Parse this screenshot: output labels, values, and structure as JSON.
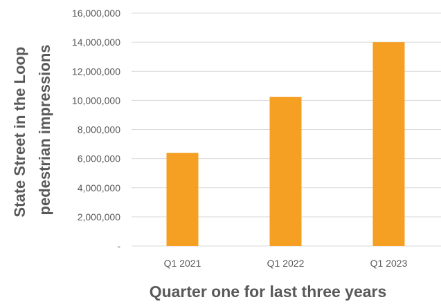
{
  "chart_data": {
    "type": "bar",
    "categories": [
      "Q1 2021",
      "Q1 2022",
      "Q1 2023"
    ],
    "values": [
      6400000,
      10250000,
      14000000
    ],
    "title": "",
    "xlabel": "Quarter one for last three years",
    "ylabel_lines": [
      "State Street in the Loop",
      "pedestrian impressions"
    ],
    "ylim": [
      0,
      16000000
    ],
    "yticks": [
      {
        "value": 0,
        "label": "-"
      },
      {
        "value": 2000000,
        "label": "2,000,000"
      },
      {
        "value": 4000000,
        "label": "4,000,000"
      },
      {
        "value": 6000000,
        "label": "6,000,000"
      },
      {
        "value": 8000000,
        "label": "8,000,000"
      },
      {
        "value": 10000000,
        "label": "10,000,000"
      },
      {
        "value": 12000000,
        "label": "12,000,000"
      },
      {
        "value": 14000000,
        "label": "14,000,000"
      },
      {
        "value": 16000000,
        "label": "16,000,000"
      }
    ],
    "grid": true,
    "legend": "none",
    "bar_color": "#F59F23"
  }
}
